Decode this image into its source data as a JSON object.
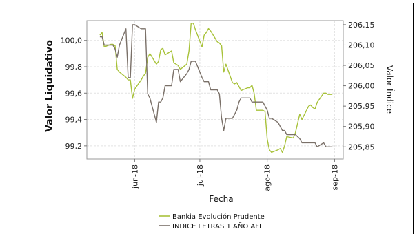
{
  "chart_data": {
    "type": "line",
    "xlabel": "Fecha",
    "ylabel_left": "Valor Liquidativo",
    "ylabel_right": "Valor Índice",
    "x_dates": [
      "2018-05-16",
      "2018-05-17",
      "2018-05-18",
      "2018-05-21",
      "2018-05-22",
      "2018-05-23",
      "2018-05-24",
      "2018-05-25",
      "2018-05-28",
      "2018-05-29",
      "2018-05-30",
      "2018-05-31",
      "2018-06-01",
      "2018-06-04",
      "2018-06-05",
      "2018-06-06",
      "2018-06-07",
      "2018-06-08",
      "2018-06-11",
      "2018-06-12",
      "2018-06-13",
      "2018-06-14",
      "2018-06-15",
      "2018-06-18",
      "2018-06-19",
      "2018-06-20",
      "2018-06-21",
      "2018-06-22",
      "2018-06-25",
      "2018-06-26",
      "2018-06-27",
      "2018-06-28",
      "2018-06-29",
      "2018-07-02",
      "2018-07-03",
      "2018-07-04",
      "2018-07-05",
      "2018-07-06",
      "2018-07-09",
      "2018-07-10",
      "2018-07-11",
      "2018-07-12",
      "2018-07-13",
      "2018-07-16",
      "2018-07-17",
      "2018-07-18",
      "2018-07-19",
      "2018-07-20",
      "2018-07-23",
      "2018-07-24",
      "2018-07-25",
      "2018-07-26",
      "2018-07-27",
      "2018-07-30",
      "2018-07-31",
      "2018-08-01",
      "2018-08-02",
      "2018-08-03",
      "2018-08-06",
      "2018-08-07",
      "2018-08-08",
      "2018-08-09",
      "2018-08-10",
      "2018-08-13",
      "2018-08-14",
      "2018-08-16",
      "2018-08-17",
      "2018-08-20",
      "2018-08-21",
      "2018-08-22",
      "2018-08-23",
      "2018-08-24",
      "2018-08-27",
      "2018-08-28",
      "2018-08-29",
      "2018-08-30",
      "2018-08-31"
    ],
    "series": [
      {
        "name": "Bankia Evolución Prudente",
        "axis": "left",
        "color": "#a8c23a",
        "values": [
          100.04,
          100.06,
          99.95,
          99.97,
          99.97,
          99.96,
          99.78,
          99.76,
          99.72,
          99.7,
          99.7,
          99.56,
          99.63,
          99.7,
          99.73,
          99.75,
          99.87,
          99.9,
          99.82,
          99.84,
          99.93,
          99.94,
          99.89,
          99.92,
          99.83,
          99.82,
          99.81,
          99.78,
          99.82,
          99.92,
          100.13,
          100.13,
          100.08,
          99.95,
          100.04,
          100.06,
          100.09,
          100.07,
          99.99,
          99.98,
          99.96,
          99.76,
          99.82,
          99.68,
          99.67,
          99.68,
          99.65,
          99.62,
          99.64,
          99.64,
          99.66,
          99.6,
          99.47,
          99.47,
          99.46,
          99.25,
          99.17,
          99.15,
          99.17,
          99.18,
          99.15,
          99.2,
          99.27,
          99.26,
          99.3,
          99.44,
          99.4,
          99.5,
          99.51,
          99.49,
          99.48,
          99.53,
          99.6,
          99.6,
          99.59,
          99.59,
          99.59
        ]
      },
      {
        "name": "INDICE LETRAS 1 AÑO AFI",
        "axis": "right",
        "color": "#7a7068",
        "values": [
          206.12,
          206.12,
          206.1,
          206.1,
          206.1,
          206.09,
          206.07,
          206.1,
          206.14,
          206.02,
          206.02,
          206.15,
          206.15,
          206.14,
          206.14,
          206.14,
          205.98,
          205.97,
          205.91,
          205.96,
          205.96,
          205.97,
          206.0,
          206.0,
          206.04,
          206.04,
          206.04,
          206.01,
          206.03,
          206.04,
          206.06,
          206.06,
          206.06,
          206.02,
          206.01,
          206.01,
          206.01,
          205.99,
          205.99,
          205.98,
          205.92,
          205.89,
          205.92,
          205.92,
          205.93,
          205.94,
          205.96,
          205.97,
          205.97,
          205.97,
          205.96,
          205.96,
          205.96,
          205.96,
          205.95,
          205.94,
          205.92,
          205.92,
          205.91,
          205.9,
          205.89,
          205.89,
          205.88,
          205.88,
          205.88,
          205.87,
          205.86,
          205.86,
          205.86,
          205.86,
          205.86,
          205.85,
          205.86,
          205.85,
          205.85,
          205.85,
          205.85
        ]
      }
    ],
    "x_ticks": [
      {
        "date": "2018-06-01",
        "label": "jun-18"
      },
      {
        "date": "2018-07-01",
        "label": "jul-18"
      },
      {
        "date": "2018-08-01",
        "label": "ago-18"
      },
      {
        "date": "2018-09-01",
        "label": "sep-18"
      }
    ],
    "y_left": {
      "min": 99.1,
      "max": 100.15,
      "ticks": [
        100.0,
        99.8,
        99.6,
        99.4,
        99.2
      ],
      "tick_labels": [
        "100,0",
        "99,8",
        "99,6",
        "99,4",
        "99,2"
      ]
    },
    "y_right": {
      "min": 205.82,
      "max": 206.16,
      "ticks": [
        206.15,
        206.1,
        206.05,
        206.0,
        205.95,
        205.9,
        205.85
      ],
      "tick_labels": [
        "206,15",
        "206,10",
        "206,05",
        "206,00",
        "205,95",
        "205,90",
        "205,85"
      ]
    },
    "x_range": [
      "2018-05-10",
      "2018-09-05"
    ],
    "grid": true,
    "legend_position": "bottom"
  }
}
